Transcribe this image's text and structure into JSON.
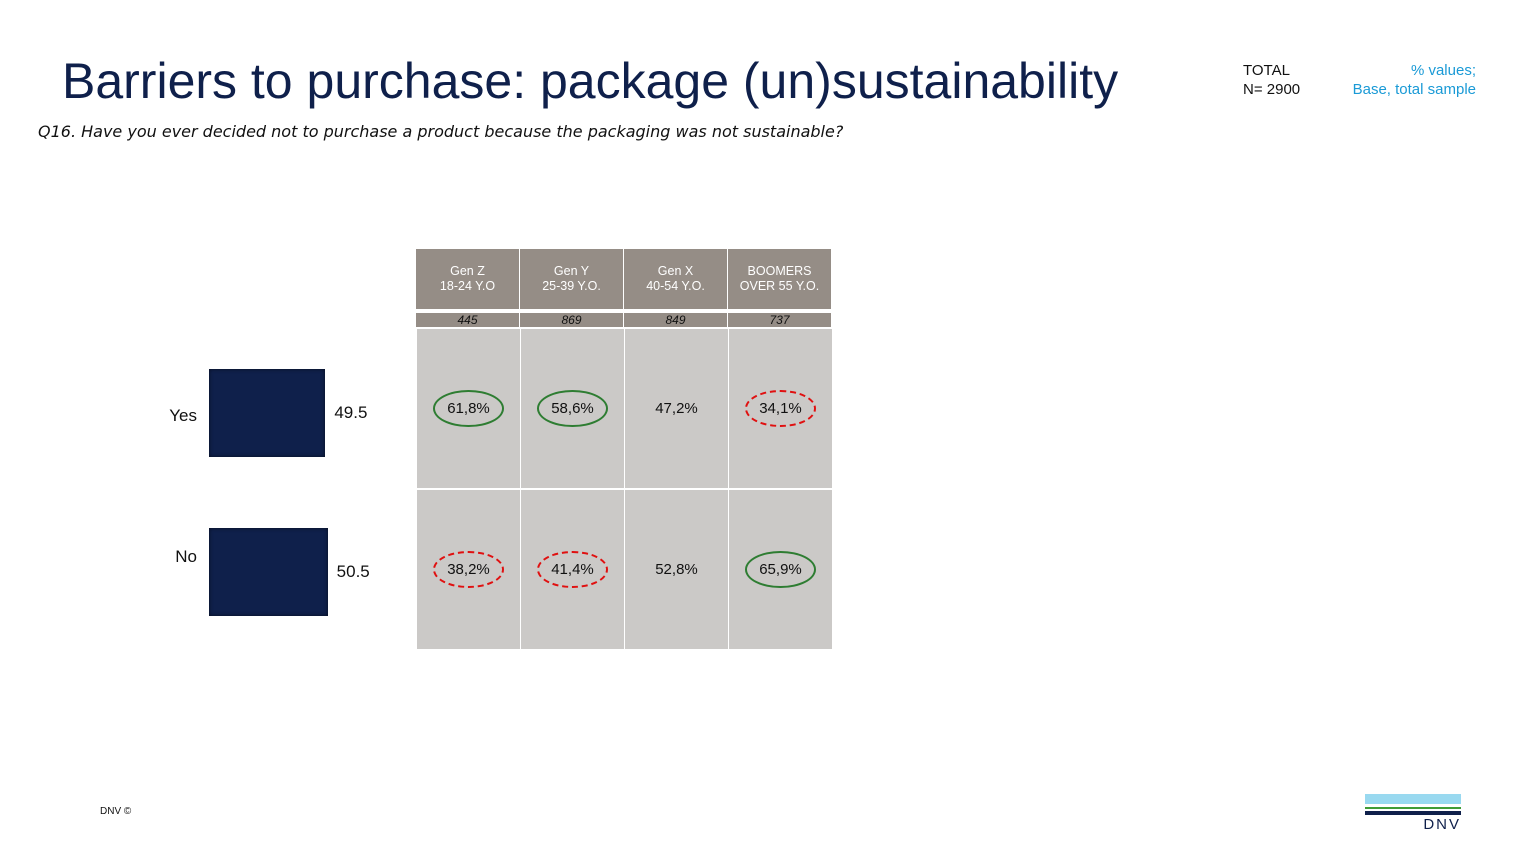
{
  "title": "Barriers to purchase: package (un)sustainability",
  "question": "Q16. Have you ever decided not to purchase a product because the packaging was not sustainable?",
  "total": {
    "label": "TOTAL",
    "n": "N= 2900"
  },
  "base": {
    "line1": "% values;",
    "line2": "Base, total sample"
  },
  "footer": "DNV ©",
  "logo": {
    "text": "DNV"
  },
  "chart_data": {
    "type": "bar",
    "orientation": "horizontal",
    "categories": [
      "Yes",
      "No"
    ],
    "values": [
      49.5,
      50.5
    ],
    "value_labels": [
      "49.5",
      "50.5"
    ],
    "bar_color": "#0f204b"
  },
  "table": {
    "columns": [
      {
        "line1": "Gen Z",
        "line2": "18-24 Y.O",
        "n": "445"
      },
      {
        "line1": "Gen Y",
        "line2": "25-39 Y.O.",
        "n": "869"
      },
      {
        "line1": "Gen X",
        "line2": "40-54 Y.O.",
        "n": "849"
      },
      {
        "line1": "BOOMERS",
        "line2": "OVER 55 Y.O.",
        "n": "737"
      }
    ],
    "rows": [
      {
        "label": "Yes",
        "cells": [
          {
            "v": "61,8%",
            "mark": "higher"
          },
          {
            "v": "58,6%",
            "mark": "higher"
          },
          {
            "v": "47,2%",
            "mark": "none"
          },
          {
            "v": "34,1%",
            "mark": "lower"
          }
        ]
      },
      {
        "label": "No",
        "cells": [
          {
            "v": "38,2%",
            "mark": "lower"
          },
          {
            "v": "41,4%",
            "mark": "lower"
          },
          {
            "v": "52,8%",
            "mark": "none"
          },
          {
            "v": "65,9%",
            "mark": "higher"
          }
        ]
      }
    ],
    "colors": {
      "higher": "#2e7d32",
      "lower": "#e01010",
      "header": "#958d86",
      "cell": "#cbc9c7"
    }
  }
}
